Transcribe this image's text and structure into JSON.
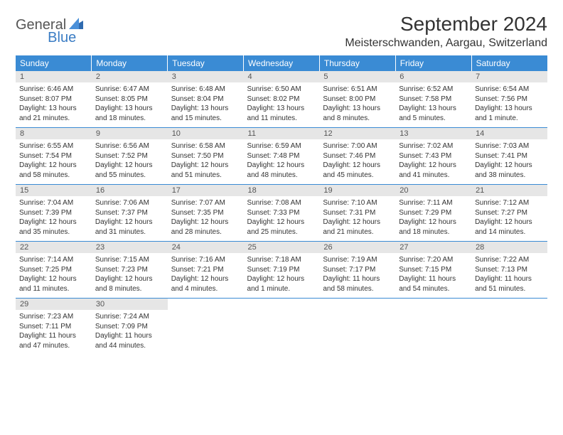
{
  "logo": {
    "text1": "General",
    "text2": "Blue"
  },
  "title": "September 2024",
  "location": "Meisterschwanden, Aargau, Switzerland",
  "colors": {
    "header_bg": "#3a8bd4",
    "header_text": "#ffffff",
    "daynum_bg": "#e6e6e6",
    "border": "#3a8bd4",
    "logo_blue": "#3a7cc4",
    "logo_gray": "#555555",
    "body_text": "#333333",
    "page_bg": "#ffffff"
  },
  "typography": {
    "title_fontsize": 28,
    "location_fontsize": 16,
    "dayhead_fontsize": 12,
    "daynum_fontsize": 11,
    "body_fontsize": 10,
    "logo_fontsize": 20
  },
  "day_headers": [
    "Sunday",
    "Monday",
    "Tuesday",
    "Wednesday",
    "Thursday",
    "Friday",
    "Saturday"
  ],
  "weeks": [
    [
      {
        "n": "1",
        "sunrise": "Sunrise: 6:46 AM",
        "sunset": "Sunset: 8:07 PM",
        "day1": "Daylight: 13 hours",
        "day2": "and 21 minutes."
      },
      {
        "n": "2",
        "sunrise": "Sunrise: 6:47 AM",
        "sunset": "Sunset: 8:05 PM",
        "day1": "Daylight: 13 hours",
        "day2": "and 18 minutes."
      },
      {
        "n": "3",
        "sunrise": "Sunrise: 6:48 AM",
        "sunset": "Sunset: 8:04 PM",
        "day1": "Daylight: 13 hours",
        "day2": "and 15 minutes."
      },
      {
        "n": "4",
        "sunrise": "Sunrise: 6:50 AM",
        "sunset": "Sunset: 8:02 PM",
        "day1": "Daylight: 13 hours",
        "day2": "and 11 minutes."
      },
      {
        "n": "5",
        "sunrise": "Sunrise: 6:51 AM",
        "sunset": "Sunset: 8:00 PM",
        "day1": "Daylight: 13 hours",
        "day2": "and 8 minutes."
      },
      {
        "n": "6",
        "sunrise": "Sunrise: 6:52 AM",
        "sunset": "Sunset: 7:58 PM",
        "day1": "Daylight: 13 hours",
        "day2": "and 5 minutes."
      },
      {
        "n": "7",
        "sunrise": "Sunrise: 6:54 AM",
        "sunset": "Sunset: 7:56 PM",
        "day1": "Daylight: 13 hours",
        "day2": "and 1 minute."
      }
    ],
    [
      {
        "n": "8",
        "sunrise": "Sunrise: 6:55 AM",
        "sunset": "Sunset: 7:54 PM",
        "day1": "Daylight: 12 hours",
        "day2": "and 58 minutes."
      },
      {
        "n": "9",
        "sunrise": "Sunrise: 6:56 AM",
        "sunset": "Sunset: 7:52 PM",
        "day1": "Daylight: 12 hours",
        "day2": "and 55 minutes."
      },
      {
        "n": "10",
        "sunrise": "Sunrise: 6:58 AM",
        "sunset": "Sunset: 7:50 PM",
        "day1": "Daylight: 12 hours",
        "day2": "and 51 minutes."
      },
      {
        "n": "11",
        "sunrise": "Sunrise: 6:59 AM",
        "sunset": "Sunset: 7:48 PM",
        "day1": "Daylight: 12 hours",
        "day2": "and 48 minutes."
      },
      {
        "n": "12",
        "sunrise": "Sunrise: 7:00 AM",
        "sunset": "Sunset: 7:46 PM",
        "day1": "Daylight: 12 hours",
        "day2": "and 45 minutes."
      },
      {
        "n": "13",
        "sunrise": "Sunrise: 7:02 AM",
        "sunset": "Sunset: 7:43 PM",
        "day1": "Daylight: 12 hours",
        "day2": "and 41 minutes."
      },
      {
        "n": "14",
        "sunrise": "Sunrise: 7:03 AM",
        "sunset": "Sunset: 7:41 PM",
        "day1": "Daylight: 12 hours",
        "day2": "and 38 minutes."
      }
    ],
    [
      {
        "n": "15",
        "sunrise": "Sunrise: 7:04 AM",
        "sunset": "Sunset: 7:39 PM",
        "day1": "Daylight: 12 hours",
        "day2": "and 35 minutes."
      },
      {
        "n": "16",
        "sunrise": "Sunrise: 7:06 AM",
        "sunset": "Sunset: 7:37 PM",
        "day1": "Daylight: 12 hours",
        "day2": "and 31 minutes."
      },
      {
        "n": "17",
        "sunrise": "Sunrise: 7:07 AM",
        "sunset": "Sunset: 7:35 PM",
        "day1": "Daylight: 12 hours",
        "day2": "and 28 minutes."
      },
      {
        "n": "18",
        "sunrise": "Sunrise: 7:08 AM",
        "sunset": "Sunset: 7:33 PM",
        "day1": "Daylight: 12 hours",
        "day2": "and 25 minutes."
      },
      {
        "n": "19",
        "sunrise": "Sunrise: 7:10 AM",
        "sunset": "Sunset: 7:31 PM",
        "day1": "Daylight: 12 hours",
        "day2": "and 21 minutes."
      },
      {
        "n": "20",
        "sunrise": "Sunrise: 7:11 AM",
        "sunset": "Sunset: 7:29 PM",
        "day1": "Daylight: 12 hours",
        "day2": "and 18 minutes."
      },
      {
        "n": "21",
        "sunrise": "Sunrise: 7:12 AM",
        "sunset": "Sunset: 7:27 PM",
        "day1": "Daylight: 12 hours",
        "day2": "and 14 minutes."
      }
    ],
    [
      {
        "n": "22",
        "sunrise": "Sunrise: 7:14 AM",
        "sunset": "Sunset: 7:25 PM",
        "day1": "Daylight: 12 hours",
        "day2": "and 11 minutes."
      },
      {
        "n": "23",
        "sunrise": "Sunrise: 7:15 AM",
        "sunset": "Sunset: 7:23 PM",
        "day1": "Daylight: 12 hours",
        "day2": "and 8 minutes."
      },
      {
        "n": "24",
        "sunrise": "Sunrise: 7:16 AM",
        "sunset": "Sunset: 7:21 PM",
        "day1": "Daylight: 12 hours",
        "day2": "and 4 minutes."
      },
      {
        "n": "25",
        "sunrise": "Sunrise: 7:18 AM",
        "sunset": "Sunset: 7:19 PM",
        "day1": "Daylight: 12 hours",
        "day2": "and 1 minute."
      },
      {
        "n": "26",
        "sunrise": "Sunrise: 7:19 AM",
        "sunset": "Sunset: 7:17 PM",
        "day1": "Daylight: 11 hours",
        "day2": "and 58 minutes."
      },
      {
        "n": "27",
        "sunrise": "Sunrise: 7:20 AM",
        "sunset": "Sunset: 7:15 PM",
        "day1": "Daylight: 11 hours",
        "day2": "and 54 minutes."
      },
      {
        "n": "28",
        "sunrise": "Sunrise: 7:22 AM",
        "sunset": "Sunset: 7:13 PM",
        "day1": "Daylight: 11 hours",
        "day2": "and 51 minutes."
      }
    ],
    [
      {
        "n": "29",
        "sunrise": "Sunrise: 7:23 AM",
        "sunset": "Sunset: 7:11 PM",
        "day1": "Daylight: 11 hours",
        "day2": "and 47 minutes."
      },
      {
        "n": "30",
        "sunrise": "Sunrise: 7:24 AM",
        "sunset": "Sunset: 7:09 PM",
        "day1": "Daylight: 11 hours",
        "day2": "and 44 minutes."
      },
      null,
      null,
      null,
      null,
      null
    ]
  ]
}
